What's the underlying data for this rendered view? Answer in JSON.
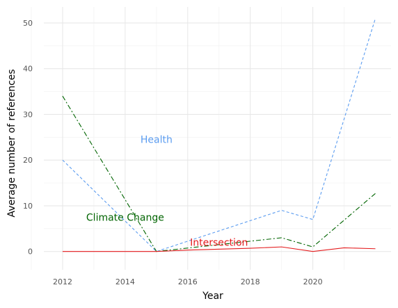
{
  "chart_data": {
    "type": "line",
    "xlabel": "Year",
    "ylabel": "Average number of references",
    "xlim": [
      2011.4,
      2022.5
    ],
    "ylim": [
      -4,
      53.5
    ],
    "x_ticks": [
      2012,
      2014,
      2016,
      2018,
      2020
    ],
    "y_ticks": [
      0,
      10,
      20,
      30,
      40,
      50
    ],
    "grid": true,
    "legend": "none",
    "series": [
      {
        "key": "health",
        "color": "#5b9cf0",
        "dash": "4,3",
        "x": [
          2012,
          2015,
          2019,
          2020,
          2022
        ],
        "y": [
          20,
          0,
          9,
          7,
          51
        ]
      },
      {
        "key": "climate",
        "color": "#006400",
        "dash": "7,3,2,3",
        "x": [
          2012,
          2015,
          2019,
          2020,
          2022
        ],
        "y": [
          34,
          0,
          3,
          1,
          12.7
        ]
      },
      {
        "key": "intersection",
        "color": "#e41a1c",
        "dash": "",
        "x": [
          2012,
          2015,
          2016,
          2018,
          2019,
          2020,
          2021,
          2022
        ],
        "y": [
          0,
          0,
          0.3,
          0.7,
          1,
          0,
          0.8,
          0.6
        ]
      }
    ],
    "annotations": [
      {
        "text": "Health",
        "x": 2015.0,
        "y": 24.5,
        "color": "#5b9cf0"
      },
      {
        "text": "Climate Change",
        "x": 2014.0,
        "y": 7.5,
        "color": "#006400"
      },
      {
        "text": "Intersection",
        "x": 2017.0,
        "y": 2.0,
        "color": "#e41a1c"
      }
    ]
  }
}
